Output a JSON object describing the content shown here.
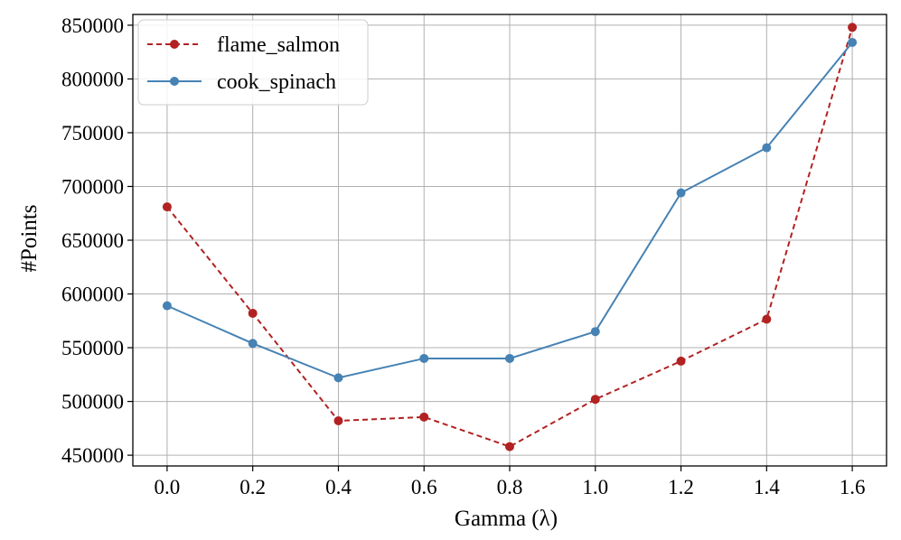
{
  "chart_data": {
    "type": "line",
    "title": "",
    "xlabel": "Gamma (λ)",
    "ylabel": "#Points",
    "x": [
      0.0,
      0.2,
      0.4,
      0.6,
      0.8,
      1.0,
      1.2,
      1.4,
      1.6
    ],
    "xticks": [
      "0.0",
      "0.2",
      "0.4",
      "0.6",
      "0.8",
      "1.0",
      "1.2",
      "1.4",
      "1.6"
    ],
    "yticks": [
      450000,
      500000,
      550000,
      600000,
      650000,
      700000,
      750000,
      800000,
      850000
    ],
    "xlim": [
      -0.08,
      1.68
    ],
    "ylim": [
      440000,
      860000
    ],
    "grid": true,
    "legend_position": "top-left",
    "series": [
      {
        "name": "flame_salmon",
        "color": "#b22222",
        "linestyle": "dashed",
        "marker": "circle",
        "values": [
          681000,
          582000,
          482000,
          485500,
          458000,
          502000,
          537500,
          576500,
          848000
        ]
      },
      {
        "name": "cook_spinach",
        "color": "#4682b4",
        "linestyle": "solid",
        "marker": "circle",
        "values": [
          589000,
          554000,
          522000,
          540000,
          540000,
          565000,
          694000,
          736000,
          834000
        ]
      }
    ]
  }
}
